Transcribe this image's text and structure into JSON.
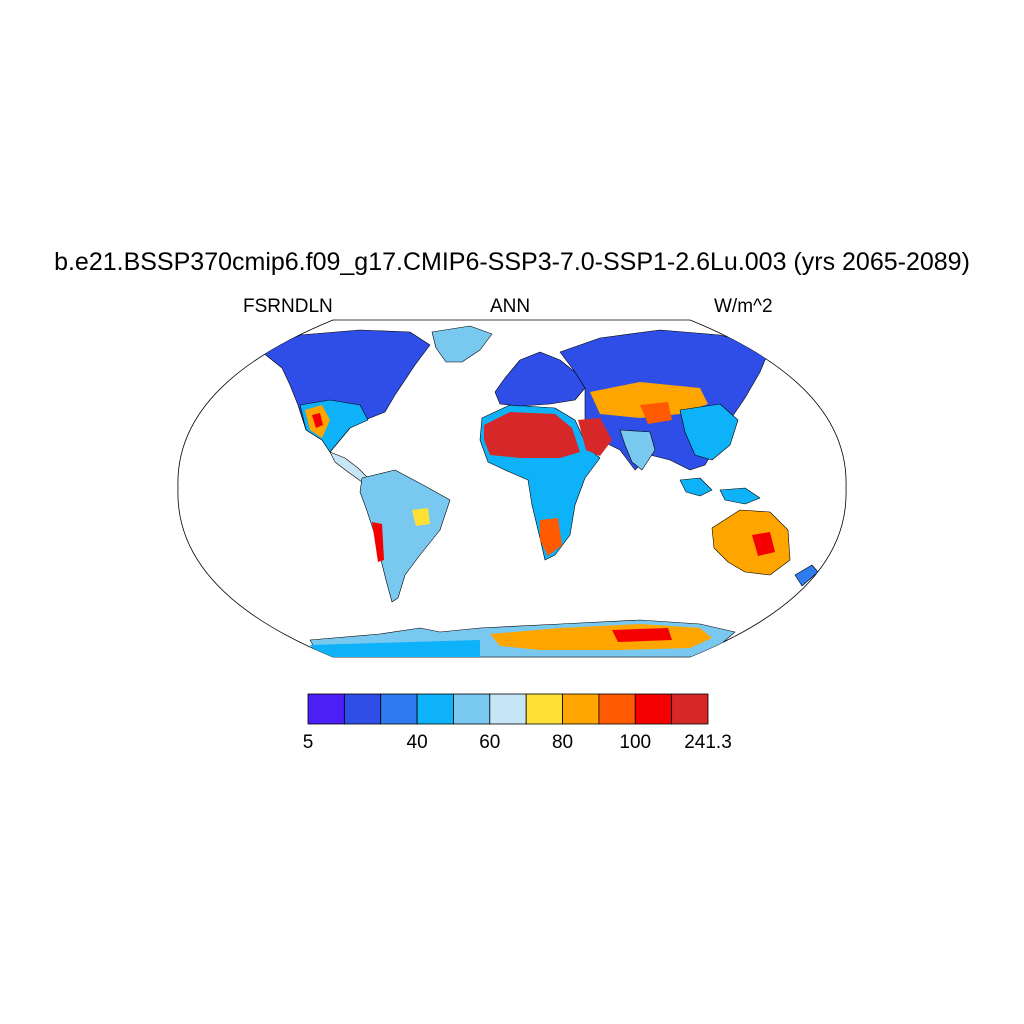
{
  "title": "b.e21.BSSP370cmip6.f09_g17.CMIP6-SSP3-7.0-SSP1-2.6Lu.003 (yrs 2065-2089)",
  "subtitle_left": "FSRNDLN",
  "subtitle_center": "ANN",
  "subtitle_right": "W/m^2",
  "colorbar": {
    "colors": [
      "#4b1ff5",
      "#2f4ee8",
      "#2f7cf0",
      "#0db2f8",
      "#78c8f0",
      "#c6e6f8",
      "#ffe135",
      "#ffa500",
      "#ff5a00",
      "#f50000",
      "#d62828"
    ],
    "tick_labels": [
      "5",
      "40",
      "60",
      "80",
      "100",
      "241.3"
    ]
  },
  "colors": {
    "land_default": "#2f7cf0",
    "ocean": "#ffffff",
    "coast": "#000000"
  }
}
